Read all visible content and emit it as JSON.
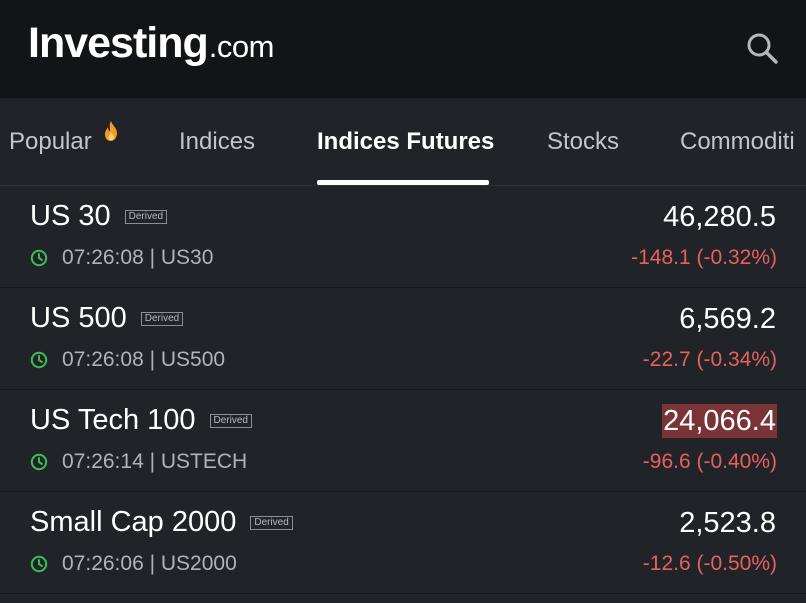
{
  "header": {
    "logo_main": "Investing",
    "logo_tld": ".com",
    "search_icon": "search-icon"
  },
  "tabs": [
    {
      "label": "Popular",
      "icon": "fire-icon",
      "active": false
    },
    {
      "label": "Indices",
      "active": false
    },
    {
      "label": "Indices Futures",
      "active": true
    },
    {
      "label": "Stocks",
      "active": false
    },
    {
      "label": "Commoditi",
      "active": false
    }
  ],
  "badge_label": "Derived",
  "instruments": [
    {
      "name": "US 30",
      "badge": "Derived",
      "time": "07:26:08",
      "symbol": "US30",
      "meta": "07:26:08 | US30",
      "price": "46,280.5",
      "change": "-148.1 (-0.32%)",
      "highlighted": false
    },
    {
      "name": "US 500",
      "badge": "Derived",
      "time": "07:26:08",
      "symbol": "US500",
      "meta": "07:26:08 | US500",
      "price": "6,569.2",
      "change": "-22.7 (-0.34%)",
      "highlighted": false
    },
    {
      "name": "US Tech 100",
      "badge": "Derived",
      "time": "07:26:14",
      "symbol": "USTECH",
      "meta": "07:26:14 | USTECH",
      "price": "24,066.4",
      "change": "-96.6 (-0.40%)",
      "highlighted": true
    },
    {
      "name": "Small Cap 2000",
      "badge": "Derived",
      "time": "07:26:06",
      "symbol": "US2000",
      "meta": "07:26:06 | US2000",
      "price": "2,523.8",
      "change": "-12.6 (-0.50%)",
      "highlighted": false
    }
  ],
  "colors": {
    "header_bg": "#121418",
    "body_bg": "#202328",
    "negative": "#e8605c",
    "clock_green": "#3fbd55",
    "fire_orange": "#f39c1f",
    "price_flash": "#7a3438"
  }
}
